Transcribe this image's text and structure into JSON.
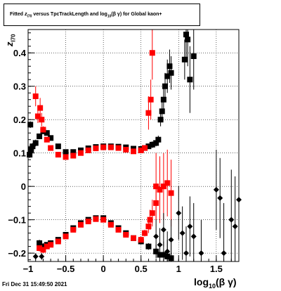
{
  "footer": {
    "timestamp": "Fri Dec 31 15:49:50 2021"
  },
  "title": {
    "pre": "Fitted ",
    "var": "z",
    "var_sub": "I70",
    "mid": " versus TpcTrackLength and log",
    "log_sub": "10",
    "post": "(β γ) for Global kaon+"
  },
  "axes": {
    "xlabel_main": "log",
    "xlabel_sub": "10",
    "xlabel_post": "(β γ)",
    "ylabel_main": "z",
    "ylabel_sub": "I70"
  },
  "chart_data": {
    "type": "scatter",
    "title": "Fitted zI70 versus TpcTrackLength and log10(β γ) for Global kaon+",
    "xlabel": "log10(β γ)",
    "ylabel": "zI70",
    "xlim": [
      -1.0,
      1.8
    ],
    "ylim": [
      -0.225,
      0.47
    ],
    "grid": true,
    "x_ticks": [
      {
        "value": -1.0,
        "label": "−1"
      },
      {
        "value": -0.5,
        "label": "−0.5"
      },
      {
        "value": 0.0,
        "label": "0"
      },
      {
        "value": 0.5,
        "label": "0.5"
      },
      {
        "value": 1.0,
        "label": "1"
      },
      {
        "value": 1.5,
        "label": "1.5"
      }
    ],
    "y_ticks": [
      {
        "value": -0.2,
        "label": "−0.2"
      },
      {
        "value": -0.1,
        "label": "−0.1"
      },
      {
        "value": 0.0,
        "label": "0"
      },
      {
        "value": 0.1,
        "label": "0.1"
      },
      {
        "value": 0.2,
        "label": "0.2"
      },
      {
        "value": 0.3,
        "label": "0.3"
      },
      {
        "value": 0.4,
        "label": "0.4"
      }
    ],
    "series": [
      {
        "color": "#000000",
        "marker": "square",
        "points": [
          [
            -0.98,
            0.095,
            0.01
          ],
          [
            -0.96,
            0.11,
            0.01
          ],
          [
            -0.94,
            0.12,
            0.01
          ],
          [
            -0.97,
            0.185,
            0.01
          ],
          [
            -0.9,
            0.13,
            0.01
          ],
          [
            -0.85,
            0.15,
            0.008
          ],
          [
            -0.8,
            0.165,
            0.008
          ],
          [
            -0.75,
            0.16,
            0.006
          ],
          [
            -0.7,
            0.145,
            0.005
          ],
          [
            -0.6,
            0.12,
            0.004
          ],
          [
            -0.5,
            0.103,
            0.004
          ],
          [
            -0.4,
            0.103,
            0.004
          ],
          [
            -0.3,
            0.108,
            0.003
          ],
          [
            -0.2,
            0.114,
            0.003
          ],
          [
            -0.1,
            0.118,
            0.003
          ],
          [
            0.0,
            0.12,
            0.003
          ],
          [
            0.1,
            0.12,
            0.003
          ],
          [
            0.2,
            0.119,
            0.003
          ],
          [
            0.3,
            0.117,
            0.004
          ],
          [
            0.4,
            0.113,
            0.004
          ],
          [
            0.5,
            0.112,
            0.005
          ],
          [
            0.55,
            0.115,
            0.006
          ],
          [
            0.6,
            0.12,
            0.008
          ],
          [
            0.65,
            0.125,
            0.01
          ],
          [
            0.7,
            0.13,
            0.01
          ],
          [
            0.73,
            0.14,
            0.012
          ],
          [
            0.76,
            0.2,
            0.02
          ],
          [
            0.78,
            0.225,
            0.03
          ],
          [
            0.8,
            0.26,
            0.04
          ],
          [
            0.82,
            0.3,
            0.04
          ],
          [
            0.85,
            0.33,
            0.05
          ],
          [
            0.88,
            0.36,
            0.05
          ],
          [
            0.9,
            0.34,
            0.05
          ],
          [
            1.08,
            0.38,
            0.06
          ],
          [
            1.1,
            0.455,
            0.08
          ],
          [
            1.12,
            0.44,
            0.08
          ],
          [
            1.15,
            0.32,
            0.1
          ],
          [
            1.2,
            0.39,
            0.1
          ],
          [
            -0.85,
            -0.17,
            0.01
          ],
          [
            -0.8,
            -0.18,
            0.01
          ],
          [
            -0.75,
            -0.175,
            0.008
          ],
          [
            -0.7,
            -0.17,
            0.006
          ],
          [
            -0.6,
            -0.16,
            0.005
          ],
          [
            -0.5,
            -0.145,
            0.004
          ],
          [
            -0.4,
            -0.125,
            0.004
          ],
          [
            -0.3,
            -0.11,
            0.004
          ],
          [
            -0.2,
            -0.1,
            0.003
          ],
          [
            -0.1,
            -0.095,
            0.003
          ],
          [
            0.0,
            -0.095,
            0.003
          ],
          [
            0.1,
            -0.11,
            0.004
          ],
          [
            0.2,
            -0.125,
            0.004
          ],
          [
            0.3,
            -0.14,
            0.005
          ],
          [
            0.4,
            -0.155,
            0.006
          ],
          [
            0.5,
            -0.165,
            0.008
          ],
          [
            0.6,
            -0.18,
            0.01
          ],
          [
            0.7,
            -0.195,
            0.02
          ],
          [
            0.75,
            -0.205,
            0.03
          ],
          [
            0.8,
            -0.205,
            0.04
          ],
          [
            0.85,
            -0.21,
            0.05
          ],
          [
            0.9,
            -0.215,
            0.06
          ]
        ]
      },
      {
        "color": "#ff0000",
        "marker": "square",
        "points": [
          [
            -0.9,
            0.27,
            0.03
          ],
          [
            -0.87,
            0.21,
            0.02
          ],
          [
            -0.84,
            0.235,
            0.03
          ],
          [
            -0.82,
            0.2,
            0.02
          ],
          [
            -0.8,
            0.17,
            0.01
          ],
          [
            -0.75,
            0.14,
            0.008
          ],
          [
            -0.7,
            0.115,
            0.006
          ],
          [
            -0.6,
            0.095,
            0.005
          ],
          [
            -0.5,
            0.088,
            0.004
          ],
          [
            -0.4,
            0.092,
            0.004
          ],
          [
            -0.3,
            0.1,
            0.003
          ],
          [
            -0.2,
            0.108,
            0.003
          ],
          [
            -0.1,
            0.114,
            0.003
          ],
          [
            0.0,
            0.117,
            0.003
          ],
          [
            0.1,
            0.117,
            0.003
          ],
          [
            0.2,
            0.115,
            0.003
          ],
          [
            0.3,
            0.11,
            0.004
          ],
          [
            0.4,
            0.105,
            0.004
          ],
          [
            0.5,
            0.108,
            0.005
          ],
          [
            0.55,
            0.115,
            0.006
          ],
          [
            0.6,
            0.22,
            0.05
          ],
          [
            0.63,
            0.26,
            0.06
          ],
          [
            0.65,
            0.4,
            0.08
          ],
          [
            0.7,
            0.0,
            0.1
          ],
          [
            0.75,
            -0.01,
            0.1
          ],
          [
            0.8,
            0.0,
            0.1
          ],
          [
            0.85,
            0.01,
            0.1
          ],
          [
            0.9,
            -0.02,
            0.1
          ],
          [
            -0.85,
            -0.185,
            0.01
          ],
          [
            -0.8,
            -0.19,
            0.01
          ],
          [
            -0.75,
            -0.18,
            0.008
          ],
          [
            -0.7,
            -0.175,
            0.006
          ],
          [
            -0.6,
            -0.165,
            0.005
          ],
          [
            -0.5,
            -0.15,
            0.004
          ],
          [
            -0.4,
            -0.13,
            0.004
          ],
          [
            -0.3,
            -0.115,
            0.004
          ],
          [
            -0.2,
            -0.105,
            0.003
          ],
          [
            -0.1,
            -0.098,
            0.003
          ],
          [
            0.0,
            -0.1,
            0.003
          ],
          [
            0.1,
            -0.115,
            0.004
          ],
          [
            0.2,
            -0.13,
            0.004
          ],
          [
            0.3,
            -0.145,
            0.005
          ],
          [
            0.4,
            -0.155,
            0.006
          ],
          [
            0.5,
            -0.16,
            0.008
          ],
          [
            0.55,
            -0.14,
            0.01
          ],
          [
            0.6,
            -0.12,
            0.02
          ],
          [
            0.62,
            -0.1,
            0.03
          ],
          [
            0.65,
            -0.08,
            0.04
          ],
          [
            0.7,
            -0.05,
            0.05
          ]
        ]
      },
      {
        "color": "#000000",
        "marker": "diamond",
        "points": [
          [
            0.7,
            -0.15,
            0.05
          ],
          [
            0.75,
            -0.175,
            0.05
          ],
          [
            0.8,
            -0.13,
            0.05
          ],
          [
            0.85,
            -0.195,
            0.06
          ],
          [
            0.9,
            -0.16,
            0.06
          ],
          [
            1.0,
            -0.08,
            0.08
          ],
          [
            1.05,
            -0.14,
            0.08
          ],
          [
            1.1,
            -0.2,
            0.08
          ],
          [
            1.15,
            -0.12,
            0.09
          ],
          [
            1.2,
            -0.15,
            0.1
          ],
          [
            1.3,
            -0.2,
            0.1
          ],
          [
            1.5,
            -0.01,
            0.12
          ],
          [
            1.55,
            -0.035,
            0.12
          ],
          [
            1.6,
            -0.2,
            0.15
          ],
          [
            1.7,
            -0.1,
            0.15
          ],
          [
            1.75,
            -0.12,
            0.15
          ],
          [
            1.8,
            -0.04,
            0.15
          ],
          [
            -0.82,
            -0.21,
            0.01
          ],
          [
            -0.9,
            -0.21,
            0.01
          ]
        ]
      }
    ]
  }
}
